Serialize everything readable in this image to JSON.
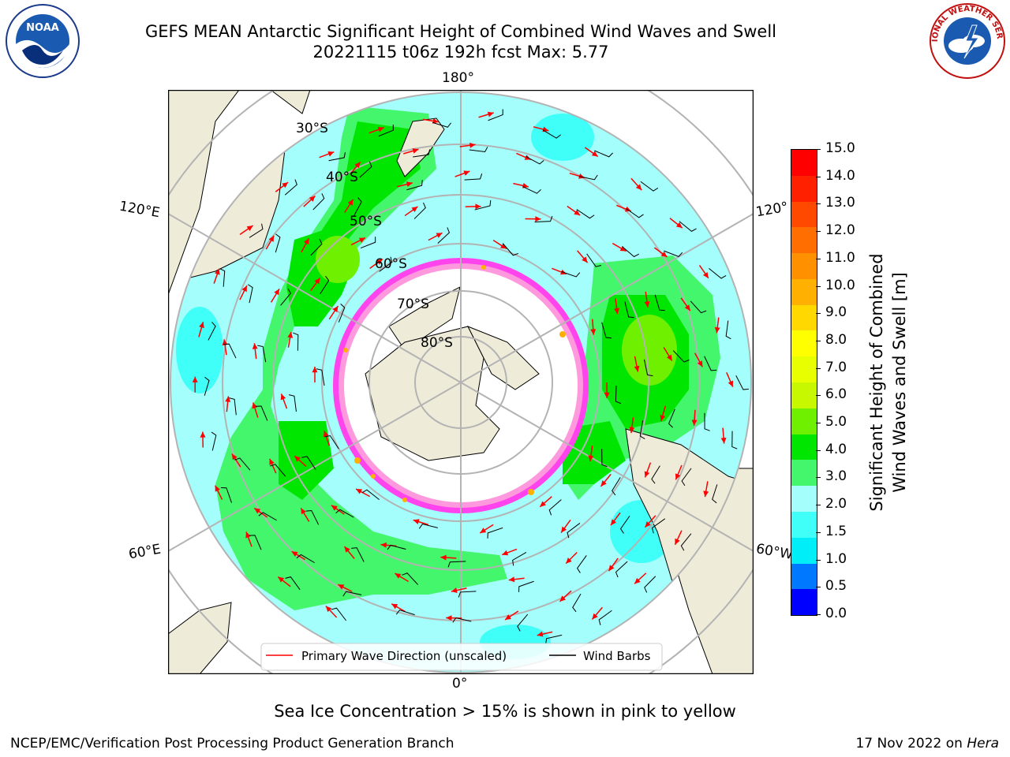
{
  "title_line1": "GEFS MEAN Antarctic Significant Height of Combined Wind Waves and Swell",
  "title_line2": "20221115 t06z 192h fcst   Max: 5.77",
  "logos": {
    "left": "NOAA",
    "right": "NATIONAL WEATHER SERVICE"
  },
  "map": {
    "lon_labels": {
      "top": "180°",
      "bottom": "0°",
      "left_upper": "120°E",
      "left_lower": "60°E",
      "right_upper": "120°",
      "right_lower": "60°W"
    },
    "lat_labels": [
      "30°S",
      "40°S",
      "50°S",
      "60°S",
      "70°S",
      "80°S"
    ],
    "legend": {
      "wave": "Primary Wave Direction (unscaled)",
      "barb": "Wind Barbs"
    },
    "colors": {
      "land": "#eeecd9",
      "ice": "#ffffff",
      "sea_ice_edge": "#ff44ee",
      "wave_arrow": "#ff0000",
      "barb": "#000000",
      "grid": "#b3b3b3"
    }
  },
  "colorbar": {
    "label_line1": "Significant Height of Combined",
    "label_line2": "Wind Waves and Swell [m]",
    "ticks": [
      "15.0",
      "14.0",
      "13.0",
      "12.0",
      "11.0",
      "10.0",
      "9.0",
      "8.0",
      "7.0",
      "6.0",
      "5.0",
      "4.0",
      "3.0",
      "2.0",
      "1.5",
      "1.0",
      "0.5",
      "0.0"
    ],
    "colors_top_to_bottom": [
      "#ff0000",
      "#ff2000",
      "#ff4800",
      "#ff6e00",
      "#ff9000",
      "#ffb000",
      "#ffd800",
      "#ffff00",
      "#e8ff00",
      "#c8f800",
      "#6ef000",
      "#00e600",
      "#44f66c",
      "#a4fffc",
      "#40fff8",
      "#00eef8",
      "#0078ff",
      "#0000ff"
    ]
  },
  "chart_data": {
    "type": "heatmap",
    "title": "GEFS MEAN Antarctic Significant Height of Combined Wind Waves and Swell",
    "subtitle": "20221115 t06z 192h fcst   Max: 5.77",
    "colorbar_label": "Significant Height of Combined Wind Waves and Swell [m]",
    "colorbar_range": [
      0.0,
      15.0
    ],
    "colorbar_bounds": [
      0.0,
      0.5,
      1.0,
      1.5,
      2.0,
      3.0,
      4.0,
      5.0,
      6.0,
      7.0,
      8.0,
      9.0,
      10.0,
      11.0,
      12.0,
      13.0,
      14.0,
      15.0
    ],
    "max": 5.77
  },
  "footer": {
    "note": "Sea Ice Concentration > 15% is shown in pink to yellow",
    "left": "NCEP/EMC/Verification Post Processing Product Generation Branch",
    "date": "17 Nov 2022 on",
    "host": "Hera"
  }
}
